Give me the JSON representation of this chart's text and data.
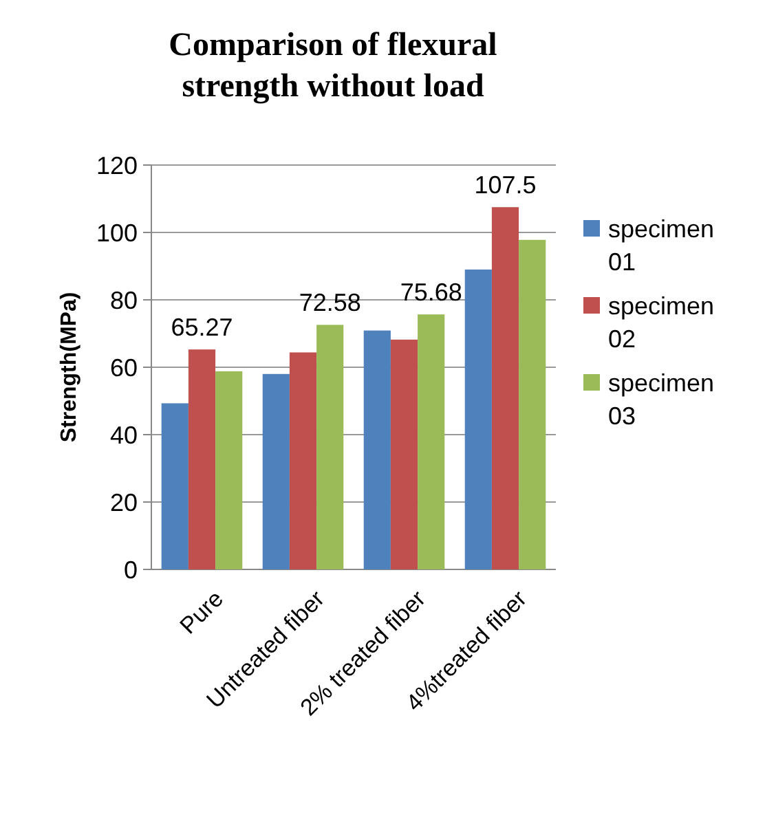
{
  "chart_data": {
    "type": "bar",
    "title": "Comparison of flexural strength without load",
    "ylabel": "Strength(MPa)",
    "categories": [
      "Pure",
      "Untreated fiber",
      "2% treated fiber",
      "4%treated fiber"
    ],
    "series": [
      {
        "name": "specimen 01",
        "color": "#4f81bd",
        "values": [
          49.3,
          58,
          70.9,
          89
        ],
        "value_labels": [
          null,
          null,
          null,
          null
        ]
      },
      {
        "name": "specimen 02",
        "color": "#c0504d",
        "values": [
          65.27,
          64.4,
          68.2,
          107.5
        ],
        "value_labels": [
          "65.27",
          null,
          null,
          "107.5"
        ]
      },
      {
        "name": "specimen 03",
        "color": "#9bbb59",
        "values": [
          58.8,
          72.58,
          75.68,
          97.8
        ],
        "value_labels": [
          null,
          "72.58",
          "75.68",
          null
        ]
      }
    ],
    "ylim": [
      0,
      120
    ],
    "yticks": [
      0,
      20,
      40,
      60,
      80,
      100,
      120
    ],
    "grid": "y",
    "legend": "right"
  }
}
